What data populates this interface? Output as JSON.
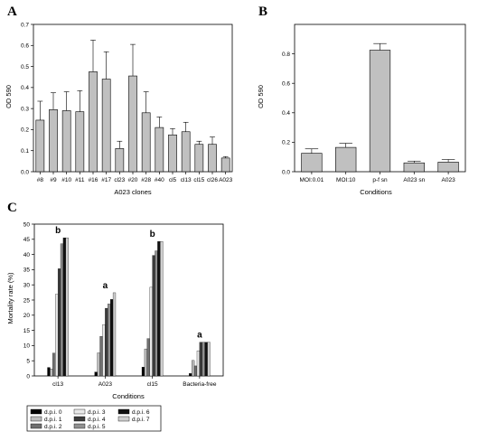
{
  "chart_data": [
    {
      "panel": "A",
      "type": "bar",
      "xlabel": "A023 clones",
      "ylabel": "OD 590",
      "ylim": [
        0,
        0.7
      ],
      "yticks": [
        "0.0",
        "0.1",
        "0.2",
        "0.3",
        "0.4",
        "0.5",
        "0.6",
        "0.7"
      ],
      "categories": [
        "#8",
        "#9",
        "#10",
        "#11",
        "#16",
        "#17",
        "cl23",
        "#20",
        "#28",
        "#40",
        "cl5",
        "cl13",
        "cl15",
        "cl26",
        "A023"
      ],
      "values": [
        0.245,
        0.295,
        0.29,
        0.285,
        0.475,
        0.44,
        0.11,
        0.455,
        0.28,
        0.21,
        0.175,
        0.19,
        0.13,
        0.13,
        0.065
      ],
      "errors": [
        0.09,
        0.08,
        0.09,
        0.1,
        0.15,
        0.13,
        0.035,
        0.15,
        0.1,
        0.05,
        0.03,
        0.045,
        0.015,
        0.035,
        0.007
      ],
      "bar_color": "#c0c0c0"
    },
    {
      "panel": "B",
      "type": "bar",
      "xlabel": "Conditions",
      "ylabel": "OD 590",
      "ylim": [
        0,
        1.0
      ],
      "yticks": [
        "0.0",
        "0.2",
        "0.4",
        "0.6",
        "0.8"
      ],
      "categories": [
        "MOI:0.01",
        "MOI:10",
        "p-f sn",
        "A023 sn",
        "A023"
      ],
      "values": [
        0.125,
        0.165,
        0.825,
        0.06,
        0.065
      ],
      "errors": [
        0.03,
        0.028,
        0.045,
        0.012,
        0.018
      ],
      "bar_color": "#c0c0c0"
    },
    {
      "panel": "C",
      "type": "bar",
      "xlabel": "Conditions",
      "ylabel": "Mortality rate (%)",
      "ylim": [
        0,
        50
      ],
      "yticks": [
        "0",
        "5",
        "10",
        "15",
        "20",
        "25",
        "30",
        "35",
        "40",
        "45",
        "50"
      ],
      "categories": [
        "cl13",
        "A023",
        "cl15",
        "Bacteria-free"
      ],
      "significance": [
        "b",
        "a",
        "b",
        "a"
      ],
      "series": [
        {
          "name": "d.p.i. 0",
          "values": [
            2.8,
            1.3,
            2.9,
            0.8
          ],
          "color": "#000000"
        },
        {
          "name": "d.p.i. 1",
          "values": [
            2.3,
            7.6,
            8.9,
            5.1
          ],
          "color": "#bdbdbd"
        },
        {
          "name": "d.p.i. 2",
          "values": [
            7.5,
            13.0,
            12.3,
            3.3
          ],
          "color": "#707070"
        },
        {
          "name": "d.p.i. 3",
          "values": [
            26.9,
            16.9,
            29.2,
            8.3
          ],
          "color": "#e8e8e8"
        },
        {
          "name": "d.p.i. 4",
          "values": [
            35.3,
            22.3,
            39.7,
            11.1
          ],
          "color": "#3c3c3c"
        },
        {
          "name": "d.p.i. 5",
          "values": [
            43.5,
            23.7,
            41.2,
            11.1
          ],
          "color": "#909090"
        },
        {
          "name": "d.p.i. 6",
          "values": [
            45.5,
            25.2,
            44.3,
            11.1
          ],
          "color": "#111111"
        },
        {
          "name": "d.p.i. 7",
          "values": [
            45.5,
            27.4,
            44.3,
            11.1
          ],
          "color": "#cfcfcf"
        }
      ]
    }
  ]
}
